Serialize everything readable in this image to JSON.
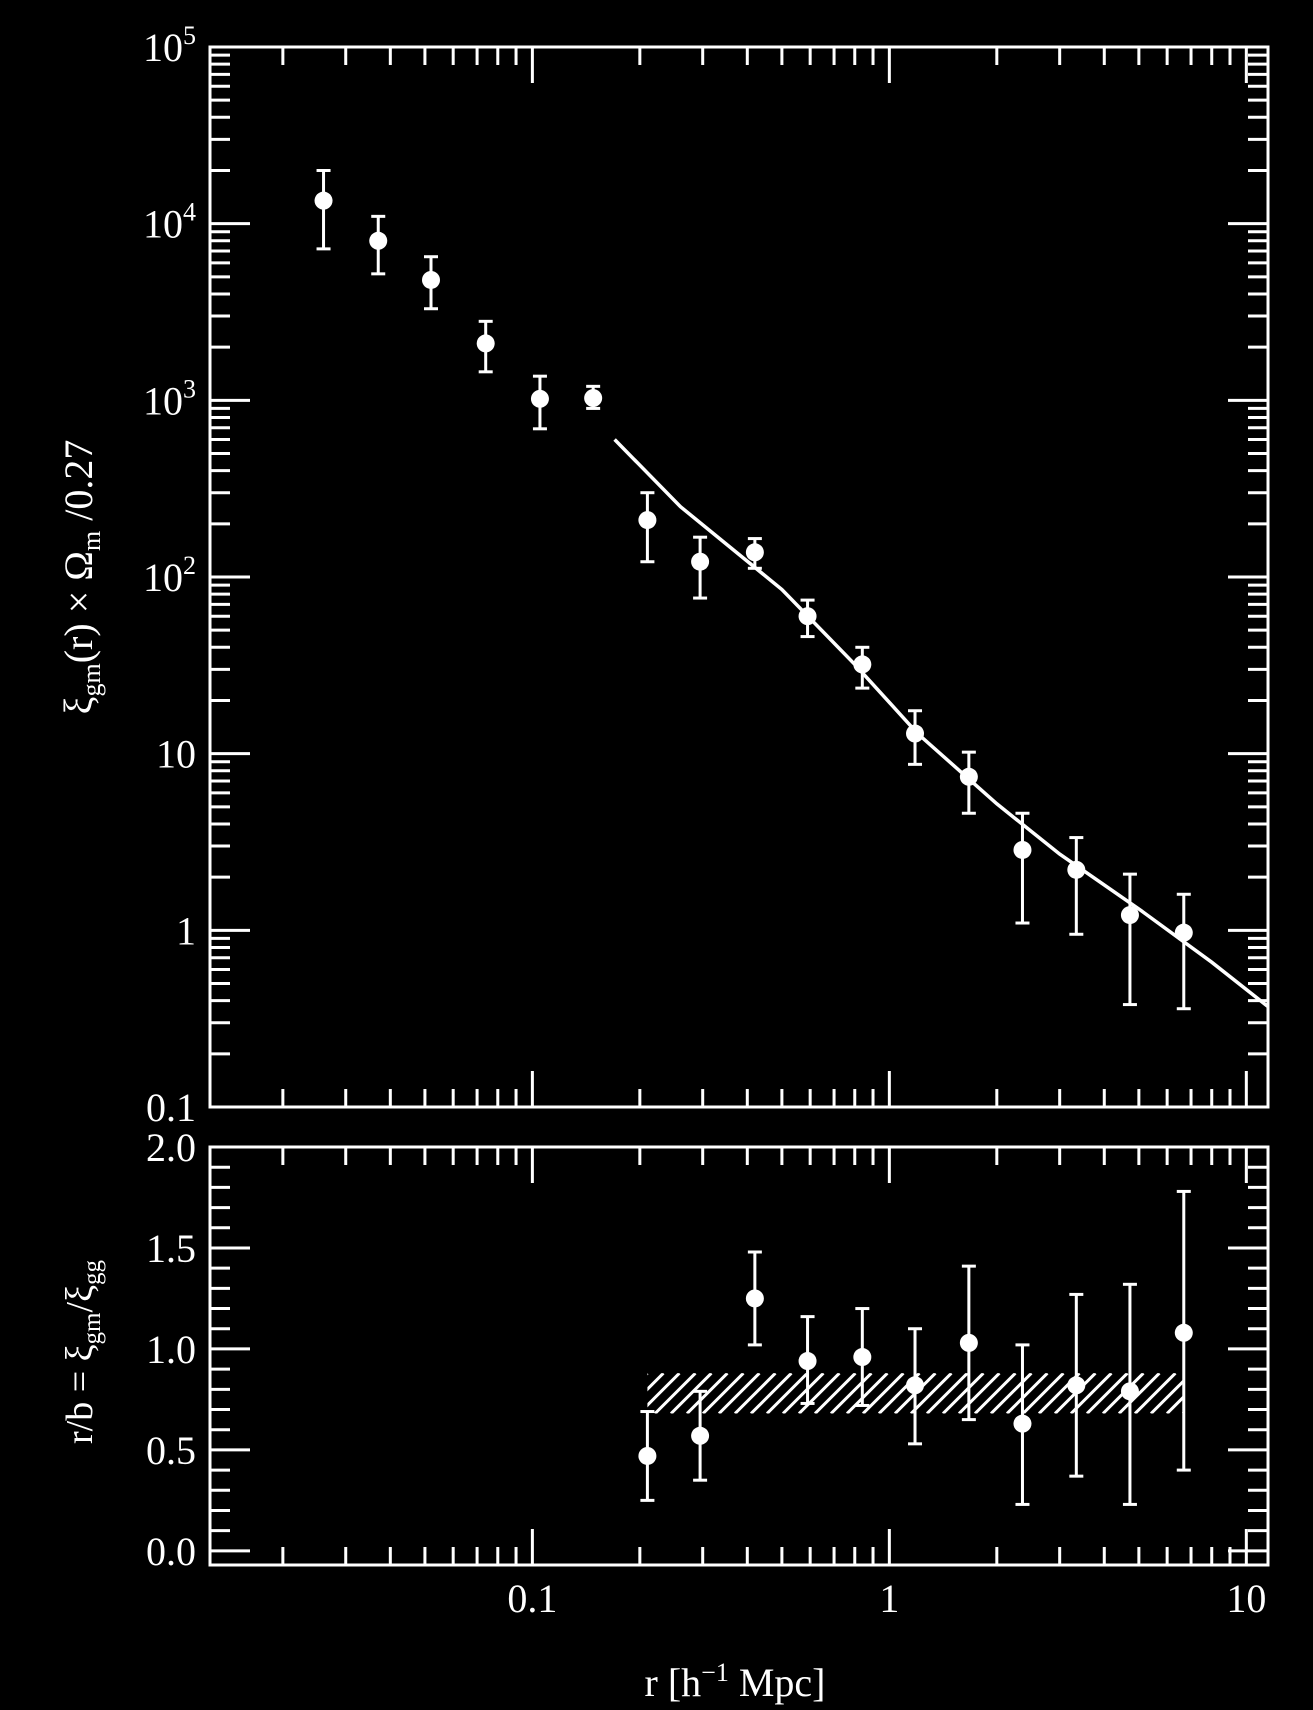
{
  "chart_data": [
    {
      "type": "scatter",
      "panel": "top",
      "x_scale": "log",
      "y_scale": "log",
      "xlim": [
        0.0125,
        11.5
      ],
      "ylim": [
        0.1,
        100000
      ],
      "xlabel": "",
      "ylabel": {
        "xi": "ξ",
        "xi_sub": "gm",
        "mid": "(r) × Ω",
        "omega_sub": "m",
        "tail": " /0.27"
      },
      "y_tick_labels": [
        {
          "value": 0.1,
          "base": "0.1",
          "exp": ""
        },
        {
          "value": 1,
          "base": "1",
          "exp": ""
        },
        {
          "value": 10,
          "base": "10",
          "exp": ""
        },
        {
          "value": 100,
          "base": "10",
          "exp": "2"
        },
        {
          "value": 1000,
          "base": "10",
          "exp": "3"
        },
        {
          "value": 10000,
          "base": "10",
          "exp": "4"
        },
        {
          "value": 100000,
          "base": "10",
          "exp": "5"
        }
      ],
      "points": [
        {
          "x": 0.026,
          "y": 13500,
          "lo": 7200,
          "hi": 20000
        },
        {
          "x": 0.037,
          "y": 8000,
          "lo": 5200,
          "hi": 11000
        },
        {
          "x": 0.052,
          "y": 4800,
          "lo": 3300,
          "hi": 6500
        },
        {
          "x": 0.074,
          "y": 2100,
          "lo": 1450,
          "hi": 2800
        },
        {
          "x": 0.105,
          "y": 1020,
          "lo": 690,
          "hi": 1370
        },
        {
          "x": 0.148,
          "y": 1030,
          "lo": 900,
          "hi": 1200
        },
        {
          "x": 0.21,
          "y": 210,
          "lo": 122,
          "hi": 300
        },
        {
          "x": 0.295,
          "y": 122,
          "lo": 76,
          "hi": 168
        },
        {
          "x": 0.42,
          "y": 138,
          "lo": 112,
          "hi": 165
        },
        {
          "x": 0.59,
          "y": 60,
          "lo": 46,
          "hi": 74
        },
        {
          "x": 0.84,
          "y": 32,
          "lo": 23.5,
          "hi": 40
        },
        {
          "x": 1.18,
          "y": 13,
          "lo": 8.7,
          "hi": 17.5
        },
        {
          "x": 1.67,
          "y": 7.4,
          "lo": 4.6,
          "hi": 10.2
        },
        {
          "x": 2.36,
          "y": 2.85,
          "lo": 1.1,
          "hi": 4.6
        },
        {
          "x": 3.34,
          "y": 2.2,
          "lo": 0.95,
          "hi": 3.35
        },
        {
          "x": 4.72,
          "y": 1.22,
          "lo": 0.38,
          "hi": 2.08
        },
        {
          "x": 6.68,
          "y": 0.97,
          "lo": 0.36,
          "hi": 1.6
        }
      ],
      "model_line": [
        {
          "x": 0.17,
          "y": 600
        },
        {
          "x": 0.26,
          "y": 250
        },
        {
          "x": 0.5,
          "y": 85
        },
        {
          "x": 0.8,
          "y": 32
        },
        {
          "x": 1.2,
          "y": 13
        },
        {
          "x": 2.0,
          "y": 5.2
        },
        {
          "x": 3.0,
          "y": 2.7
        },
        {
          "x": 5.0,
          "y": 1.32
        },
        {
          "x": 8.0,
          "y": 0.66
        },
        {
          "x": 11.5,
          "y": 0.37
        }
      ]
    },
    {
      "type": "scatter",
      "panel": "bottom",
      "x_scale": "log",
      "y_scale": "linear",
      "xlim": [
        0.0125,
        11.5
      ],
      "ylim": [
        -0.07,
        2.0
      ],
      "xlabel": {
        "main": "r [h",
        "sup": "−1",
        "tail": " Mpc]"
      },
      "x_tick_labels": [
        {
          "value": 0.1,
          "label": "0.1"
        },
        {
          "value": 1,
          "label": "1"
        },
        {
          "value": 10,
          "label": "10"
        }
      ],
      "ylabel": {
        "lead": "r/b = ξ",
        "sub1": "gm",
        "slash": "/ξ",
        "sub2": "gg"
      },
      "y_tick_labels": [
        {
          "value": 0.0,
          "label": "0.0"
        },
        {
          "value": 0.5,
          "label": "0.5"
        },
        {
          "value": 1.0,
          "label": "1.0"
        },
        {
          "value": 1.5,
          "label": "1.5"
        },
        {
          "value": 2.0,
          "label": "2.0"
        }
      ],
      "points": [
        {
          "x": 0.21,
          "y": 0.47,
          "lo": 0.25,
          "hi": 0.69
        },
        {
          "x": 0.295,
          "y": 0.57,
          "lo": 0.35,
          "hi": 0.79
        },
        {
          "x": 0.42,
          "y": 1.25,
          "lo": 1.02,
          "hi": 1.48
        },
        {
          "x": 0.59,
          "y": 0.94,
          "lo": 0.73,
          "hi": 1.16
        },
        {
          "x": 0.84,
          "y": 0.96,
          "lo": 0.72,
          "hi": 1.2
        },
        {
          "x": 1.18,
          "y": 0.82,
          "lo": 0.53,
          "hi": 1.1
        },
        {
          "x": 1.67,
          "y": 1.03,
          "lo": 0.65,
          "hi": 1.41
        },
        {
          "x": 2.36,
          "y": 0.63,
          "lo": 0.23,
          "hi": 1.02
        },
        {
          "x": 3.34,
          "y": 0.82,
          "lo": 0.37,
          "hi": 1.27
        },
        {
          "x": 4.72,
          "y": 0.79,
          "lo": 0.23,
          "hi": 1.32
        },
        {
          "x": 6.68,
          "y": 1.08,
          "lo": 0.4,
          "hi": 1.78
        }
      ],
      "band": {
        "x_start": 0.21,
        "x_end": 6.68,
        "y_low": 0.68,
        "y_high": 0.88
      }
    }
  ]
}
